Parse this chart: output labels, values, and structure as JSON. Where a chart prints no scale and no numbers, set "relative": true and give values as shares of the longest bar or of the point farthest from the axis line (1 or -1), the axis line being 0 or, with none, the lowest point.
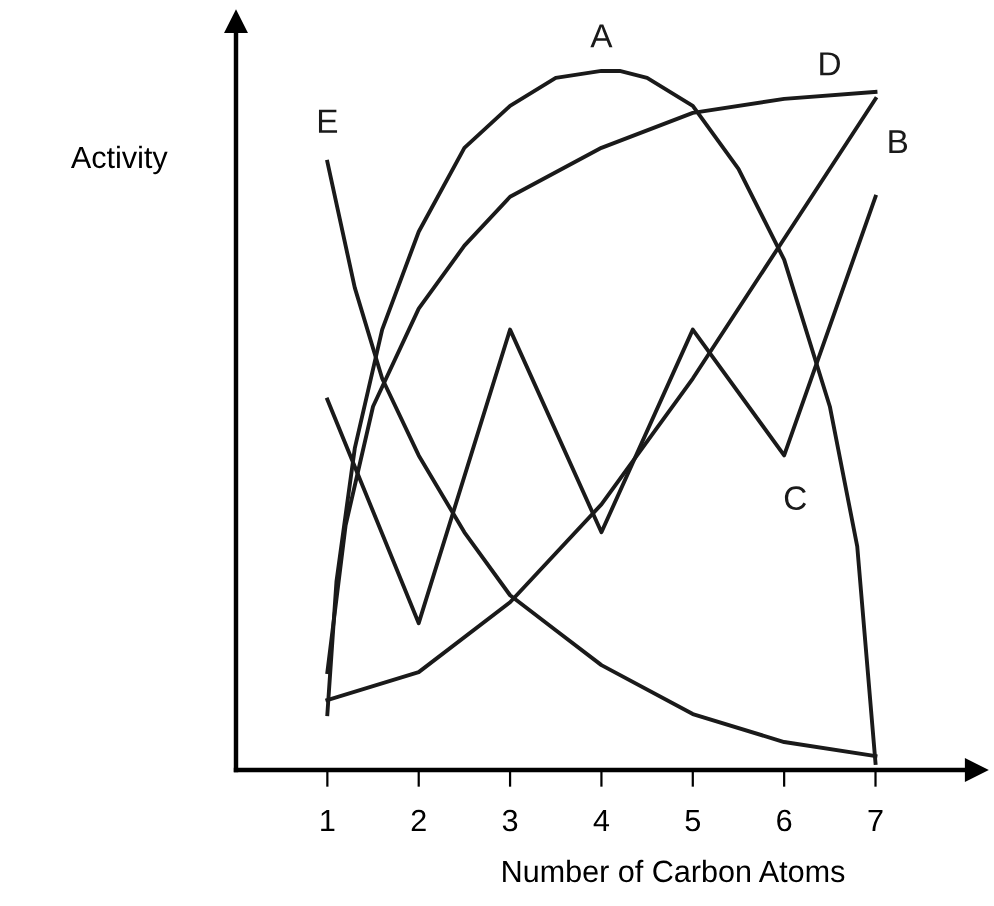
{
  "chart_data": {
    "type": "line",
    "relative": true,
    "xlabel": "Number of Carbon Atoms",
    "ylabel": "Activity",
    "xlim": [
      0,
      8.1
    ],
    "xticks": [
      1,
      2,
      3,
      4,
      5,
      6,
      7
    ],
    "grid": false,
    "legend": false,
    "marker": "none",
    "line_style": "solid",
    "series": [
      {
        "name": "A",
        "color": "#1a1a1a",
        "x": [
          1,
          1.1,
          1.3,
          1.6,
          2,
          2.5,
          3,
          3.5,
          4,
          4.2,
          4.5,
          5,
          5.5,
          6,
          6.5,
          6.8,
          7
        ],
        "values": [
          0.08,
          0.27,
          0.46,
          0.63,
          0.77,
          0.89,
          0.95,
          0.99,
          1.0,
          1.0,
          0.99,
          0.95,
          0.86,
          0.73,
          0.52,
          0.32,
          0.01
        ]
      },
      {
        "name": "D",
        "color": "#1a1a1a",
        "x": [
          1,
          1.2,
          1.5,
          2,
          2.5,
          3,
          4,
          5,
          6,
          7
        ],
        "values": [
          0.14,
          0.35,
          0.52,
          0.66,
          0.75,
          0.82,
          0.89,
          0.94,
          0.96,
          0.97
        ]
      },
      {
        "name": "B",
        "color": "#1a1a1a",
        "x": [
          1,
          2,
          3,
          4,
          5,
          6,
          7
        ],
        "values": [
          0.1,
          0.14,
          0.24,
          0.38,
          0.56,
          0.76,
          0.96
        ]
      },
      {
        "name": "C",
        "color": "#1a1a1a",
        "x": [
          1,
          2,
          3,
          4,
          5,
          6,
          7
        ],
        "values": [
          0.53,
          0.21,
          0.63,
          0.34,
          0.63,
          0.45,
          0.82
        ]
      },
      {
        "name": "E",
        "color": "#1a1a1a",
        "x": [
          1,
          1.3,
          1.6,
          2,
          2.5,
          3,
          3.5,
          4,
          5,
          6,
          7
        ],
        "values": [
          0.87,
          0.69,
          0.56,
          0.45,
          0.34,
          0.25,
          0.2,
          0.15,
          0.08,
          0.04,
          0.02
        ]
      }
    ]
  }
}
